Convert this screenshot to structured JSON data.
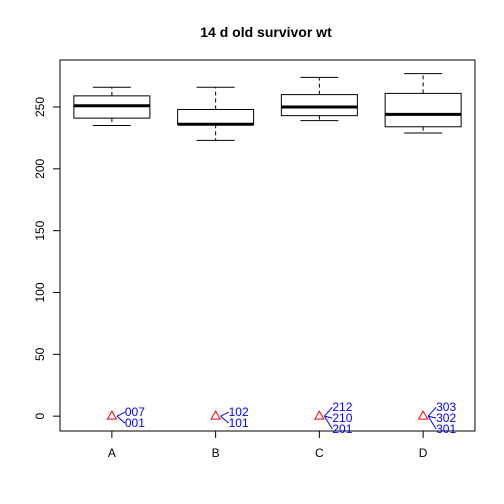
{
  "chart_data": {
    "type": "box",
    "title": "14 d old survivor wt",
    "xlabel": "",
    "ylabel": "",
    "ylim": [
      -12,
      288
    ],
    "y_ticks": [
      0,
      50,
      100,
      150,
      200,
      250
    ],
    "categories": [
      "A",
      "B",
      "C",
      "D"
    ],
    "boxes": [
      {
        "category": "A",
        "whisker_low": 235,
        "q1": 241,
        "median": 251,
        "q3": 259,
        "whisker_high": 266
      },
      {
        "category": "B",
        "whisker_low": 223,
        "q1": 236,
        "median": 236,
        "q3": 248,
        "whisker_high": 266
      },
      {
        "category": "C",
        "whisker_low": 239,
        "q1": 243,
        "median": 250,
        "q3": 260,
        "whisker_high": 274
      },
      {
        "category": "D",
        "whisker_low": 229,
        "q1": 234,
        "median": 244,
        "q3": 261,
        "whisker_high": 277
      }
    ],
    "outliers": [
      {
        "category": "A",
        "value": 0,
        "labels": [
          "007",
          "001"
        ]
      },
      {
        "category": "B",
        "value": 0,
        "labels": [
          "102",
          "101"
        ]
      },
      {
        "category": "C",
        "value": 0,
        "labels": [
          "212",
          "210",
          "201"
        ]
      },
      {
        "category": "D",
        "value": 0,
        "labels": [
          "303",
          "302",
          "301"
        ]
      }
    ],
    "colors": {
      "box": "#000000",
      "outlier_marker": "#ff0000",
      "outlier_label": "#0000ff"
    },
    "grid": false
  }
}
